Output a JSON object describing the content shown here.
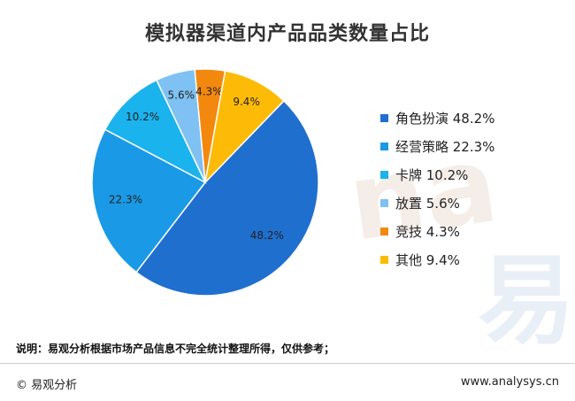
{
  "title": "模拟器渠道内产品品类数量占比",
  "chart_data": {
    "type": "pie",
    "title": "模拟器渠道内产品品类数量占比",
    "slices": [
      {
        "name": "角色扮演",
        "value": 48.2,
        "label": "48.2%",
        "legend": "角色扮演 48.2%",
        "color": "#1f6fcf"
      },
      {
        "name": "经营策略",
        "value": 22.3,
        "label": "22.3%",
        "legend": "经营策略 22.3%",
        "color": "#1a9ae6"
      },
      {
        "name": "卡牌",
        "value": 10.2,
        "label": "10.2%",
        "legend": "卡牌 10.2%",
        "color": "#1ab3ee"
      },
      {
        "name": "放置",
        "value": 5.6,
        "label": "5.6%",
        "legend": "放置 5.6%",
        "color": "#7ec1f2"
      },
      {
        "name": "竞技",
        "value": 4.3,
        "label": "4.3%",
        "legend": "竞技 4.3%",
        "color": "#f3880f"
      },
      {
        "name": "其他",
        "value": 9.4,
        "label": "9.4%",
        "legend": "其他 9.4%",
        "color": "#fdbb08"
      }
    ]
  },
  "note": "说明：易观分析根据市场产品信息不完全统计整理所得，仅供参考；",
  "footer": {
    "left": "© 易观分析",
    "right": "www.analysys.cn"
  },
  "watermark": {
    "latin": "na",
    "cjk": "易"
  }
}
